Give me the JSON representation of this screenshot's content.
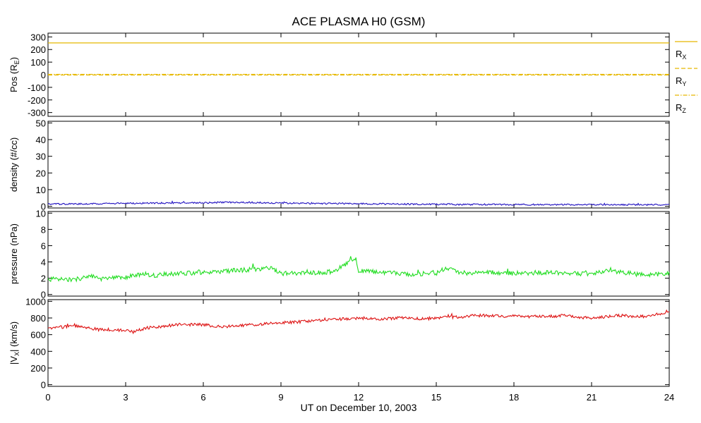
{
  "title": "ACE PLASMA H0 (GSM)",
  "xlabel": "UT on December 10, 2003",
  "x_ticks": [
    0,
    3,
    6,
    9,
    12,
    15,
    18,
    21,
    24
  ],
  "chart_data": [
    {
      "type": "line",
      "ylabel_text": "Pos (R",
      "ylabel_sub": "E",
      "ylabel_close": ")",
      "ylim": [
        -330,
        330
      ],
      "y_ticks": [
        300,
        200,
        100,
        0,
        -100,
        -200,
        -300
      ],
      "xlim": [
        0,
        24
      ],
      "series": [
        {
          "name": "R",
          "sub": "X",
          "color": "#e6b800",
          "dash": "solid",
          "x": [
            0,
            24
          ],
          "values": [
            252,
            252
          ]
        },
        {
          "name": "R",
          "sub": "Y",
          "color": "#e6b800",
          "dash": "dash",
          "x": [
            0,
            24
          ],
          "values": [
            -2,
            -2
          ]
        },
        {
          "name": "R",
          "sub": "Z",
          "color": "#e6b800",
          "dash": "dashdot",
          "x": [
            0,
            24
          ],
          "values": [
            3,
            3
          ]
        }
      ],
      "legend_position": "right"
    },
    {
      "type": "line",
      "ylabel_text": "density (#/cc)",
      "ylim": [
        -1,
        51
      ],
      "y_ticks": [
        50,
        40,
        30,
        20,
        10,
        0
      ],
      "xlim": [
        0,
        24
      ],
      "series": [
        {
          "color": "#2010c0",
          "x": [
            0,
            1,
            2,
            3,
            4,
            5,
            6,
            7,
            8,
            9,
            10,
            11,
            12,
            13,
            14,
            15,
            16,
            17,
            18,
            19,
            20,
            21,
            22,
            23,
            24
          ],
          "values": [
            1.3,
            1.4,
            1.6,
            1.8,
            1.9,
            2.0,
            2.1,
            2.4,
            2.3,
            1.9,
            1.8,
            1.7,
            1.6,
            1.4,
            1.3,
            1.2,
            1.1,
            1.1,
            1.0,
            1.0,
            1.0,
            1.0,
            1.0,
            0.9,
            0.9
          ]
        }
      ]
    },
    {
      "type": "line",
      "ylabel_text": "pressure (nPa)",
      "ylim": [
        -0.2,
        10.2
      ],
      "y_ticks": [
        10,
        8,
        6,
        4,
        2,
        0
      ],
      "xlim": [
        0,
        24
      ],
      "series": [
        {
          "color": "#22dd22",
          "x": [
            0,
            1,
            1.6,
            2,
            3,
            3.8,
            4,
            5,
            6,
            7,
            8,
            8.5,
            9,
            10,
            11,
            11.9,
            12,
            13,
            14,
            15,
            15.4,
            16,
            17,
            18,
            19,
            20,
            21,
            21.8,
            22,
            23,
            24
          ],
          "values": [
            1.9,
            1.8,
            2.3,
            1.9,
            2.1,
            2.6,
            2.3,
            2.6,
            2.7,
            2.9,
            3.1,
            3.3,
            2.6,
            2.6,
            2.8,
            4.4,
            2.9,
            2.7,
            2.5,
            2.6,
            3.3,
            2.6,
            2.7,
            2.6,
            2.7,
            2.6,
            2.5,
            3.1,
            2.8,
            2.4,
            2.6
          ]
        }
      ]
    },
    {
      "type": "line",
      "ylabel_text": "|V",
      "ylabel_sub": "X",
      "ylabel_close": "| (km/s)",
      "ylim": [
        -20,
        1020
      ],
      "y_ticks": [
        1000,
        800,
        600,
        400,
        200,
        0
      ],
      "xlim": [
        0,
        24
      ],
      "series": [
        {
          "color": "#dd1111",
          "x": [
            0,
            0.5,
            1,
            1.5,
            2,
            2.5,
            3,
            3.3,
            3.5,
            4,
            4.5,
            5,
            5.5,
            6,
            6.5,
            7,
            7.5,
            8,
            8.5,
            9,
            9.5,
            10,
            10.5,
            11,
            11.5,
            12,
            12.5,
            13,
            13.5,
            14,
            14.5,
            15,
            15.5,
            16,
            16.5,
            17,
            17.5,
            18,
            18.5,
            19,
            19.5,
            20,
            20.5,
            21,
            21.5,
            22,
            22.5,
            23,
            23.5,
            24
          ],
          "values": [
            670,
            690,
            710,
            680,
            660,
            660,
            650,
            630,
            660,
            690,
            700,
            720,
            720,
            720,
            700,
            700,
            710,
            720,
            730,
            740,
            750,
            760,
            770,
            780,
            790,
            800,
            790,
            790,
            800,
            800,
            790,
            800,
            810,
            810,
            830,
            830,
            820,
            820,
            810,
            820,
            820,
            830,
            810,
            800,
            810,
            830,
            820,
            820,
            840,
            860
          ]
        }
      ]
    }
  ]
}
